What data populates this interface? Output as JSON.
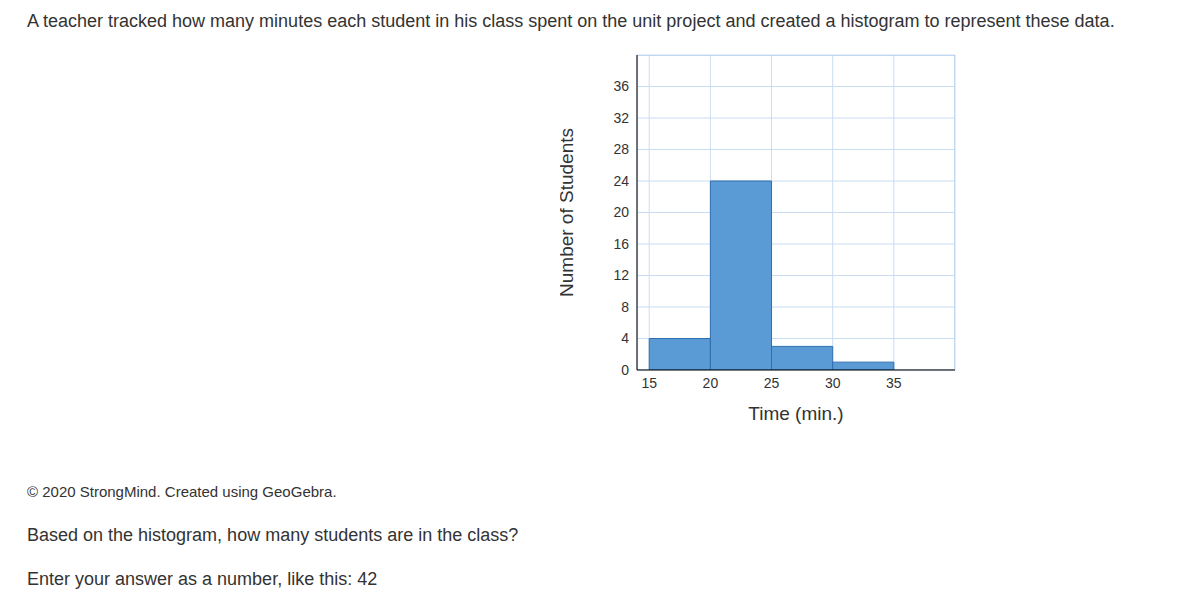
{
  "header": {
    "text": "A teacher tracked how many minutes each student in his class spent on the unit project and created a histogram to represent these data."
  },
  "chart_data": {
    "type": "histogram",
    "bins": [
      15,
      20,
      25,
      30,
      35
    ],
    "values": [
      4,
      24,
      3,
      1
    ],
    "xlabel": "Time (min.)",
    "ylabel": "Number of Students",
    "xlim": [
      14,
      40
    ],
    "ylim": [
      0,
      40
    ],
    "xticks": [
      15,
      20,
      25,
      30,
      35
    ],
    "yticks": [
      0,
      4,
      8,
      12,
      16,
      20,
      24,
      28,
      32,
      36
    ],
    "grid": true,
    "color": "#5b9bd5"
  },
  "credit": "© 2020 StrongMind. Created using GeoGebra.",
  "question": "Based on the histogram, how many students are in the class?",
  "instruction": "Enter your answer as a number, like this: 42"
}
